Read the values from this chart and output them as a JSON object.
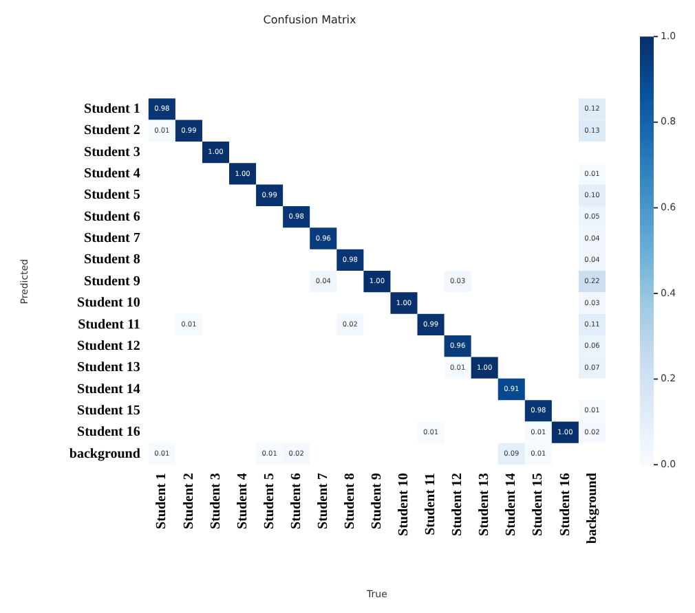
{
  "chart_data": {
    "type": "heatmap",
    "title": "Confusion Matrix",
    "xlabel": "True",
    "ylabel": "Predicted",
    "categories": [
      "Student 1",
      "Student 2",
      "Student 3",
      "Student 4",
      "Student 5",
      "Student 6",
      "Student 7",
      "Student 8",
      "Student 9",
      "Student 10",
      "Student 11",
      "Student 12",
      "Student 13",
      "Student 14",
      "Student 15",
      "Student 16",
      "background"
    ],
    "y_categories": [
      "Student 1",
      "Student 2",
      "Student 3",
      "Student 4",
      "Student 5",
      "Student 6",
      "Student 7",
      "Student 8",
      "Student 9",
      "Student 10",
      "Student 11",
      "Student 12",
      "Student 13",
      "Student 14",
      "Student 15",
      "Student 16",
      "background"
    ],
    "cells": [
      [
        0.98,
        null,
        null,
        null,
        null,
        null,
        null,
        null,
        null,
        null,
        null,
        null,
        null,
        null,
        null,
        null,
        0.12
      ],
      [
        0.01,
        0.99,
        null,
        null,
        null,
        null,
        null,
        null,
        null,
        null,
        null,
        null,
        null,
        null,
        null,
        null,
        0.13
      ],
      [
        null,
        null,
        1.0,
        null,
        null,
        null,
        null,
        null,
        null,
        null,
        null,
        null,
        null,
        null,
        null,
        null,
        null
      ],
      [
        null,
        null,
        null,
        1.0,
        null,
        null,
        null,
        null,
        null,
        null,
        null,
        null,
        null,
        null,
        null,
        null,
        0.01
      ],
      [
        null,
        null,
        null,
        null,
        0.99,
        null,
        null,
        null,
        null,
        null,
        null,
        null,
        null,
        null,
        null,
        null,
        0.1
      ],
      [
        null,
        null,
        null,
        null,
        null,
        0.98,
        null,
        null,
        null,
        null,
        null,
        null,
        null,
        null,
        null,
        null,
        0.05
      ],
      [
        null,
        null,
        null,
        null,
        null,
        null,
        0.96,
        null,
        null,
        null,
        null,
        null,
        null,
        null,
        null,
        null,
        0.04
      ],
      [
        null,
        null,
        null,
        null,
        null,
        null,
        null,
        0.98,
        null,
        null,
        null,
        null,
        null,
        null,
        null,
        null,
        0.04
      ],
      [
        null,
        null,
        null,
        null,
        null,
        null,
        0.04,
        null,
        1.0,
        null,
        null,
        0.03,
        null,
        null,
        null,
        null,
        0.22
      ],
      [
        null,
        null,
        null,
        null,
        null,
        null,
        null,
        null,
        null,
        1.0,
        null,
        null,
        null,
        null,
        null,
        null,
        0.03
      ],
      [
        null,
        0.01,
        null,
        null,
        null,
        null,
        null,
        0.02,
        null,
        null,
        0.99,
        null,
        null,
        null,
        null,
        null,
        0.11
      ],
      [
        null,
        null,
        null,
        null,
        null,
        null,
        null,
        null,
        null,
        null,
        null,
        0.96,
        null,
        null,
        null,
        null,
        0.06
      ],
      [
        null,
        null,
        null,
        null,
        null,
        null,
        null,
        null,
        null,
        null,
        null,
        0.01,
        1.0,
        null,
        null,
        null,
        0.07
      ],
      [
        null,
        null,
        null,
        null,
        null,
        null,
        null,
        null,
        null,
        null,
        null,
        null,
        null,
        0.91,
        null,
        null,
        null
      ],
      [
        null,
        null,
        null,
        null,
        null,
        null,
        null,
        null,
        null,
        null,
        null,
        null,
        null,
        null,
        0.98,
        null,
        0.01
      ],
      [
        null,
        null,
        null,
        null,
        null,
        null,
        null,
        null,
        null,
        null,
        0.01,
        null,
        null,
        null,
        0.01,
        1.0,
        0.02
      ],
      [
        0.01,
        null,
        null,
        null,
        0.01,
        0.02,
        null,
        null,
        null,
        null,
        null,
        null,
        null,
        0.09,
        0.01,
        null,
        null
      ]
    ],
    "cell_labels": [
      [
        "0.98",
        null,
        null,
        null,
        null,
        null,
        null,
        null,
        null,
        null,
        null,
        null,
        null,
        null,
        null,
        null,
        "0.12"
      ],
      [
        "0.01",
        "0.99",
        null,
        null,
        null,
        null,
        null,
        null,
        null,
        null,
        null,
        null,
        null,
        null,
        null,
        null,
        "0.13"
      ],
      [
        null,
        null,
        "1.00",
        null,
        null,
        null,
        null,
        null,
        null,
        null,
        null,
        null,
        null,
        null,
        null,
        null,
        null
      ],
      [
        null,
        null,
        null,
        "1.00",
        null,
        null,
        null,
        null,
        null,
        null,
        null,
        null,
        null,
        null,
        null,
        null,
        "0.01"
      ],
      [
        null,
        null,
        null,
        null,
        "0.99",
        null,
        null,
        null,
        null,
        null,
        null,
        null,
        null,
        null,
        null,
        null,
        "0.10"
      ],
      [
        null,
        null,
        null,
        null,
        null,
        "0.98",
        null,
        null,
        null,
        null,
        null,
        null,
        null,
        null,
        null,
        null,
        "0.05"
      ],
      [
        null,
        null,
        null,
        null,
        null,
        null,
        "0.96",
        null,
        null,
        null,
        null,
        null,
        null,
        null,
        null,
        null,
        "0.04"
      ],
      [
        null,
        null,
        null,
        null,
        null,
        null,
        null,
        "0.98",
        null,
        null,
        null,
        null,
        null,
        null,
        null,
        null,
        "0.04"
      ],
      [
        null,
        null,
        null,
        null,
        null,
        null,
        "0.04",
        null,
        "1.00",
        null,
        null,
        "0.03",
        null,
        null,
        null,
        null,
        "0.22"
      ],
      [
        null,
        null,
        null,
        null,
        null,
        null,
        null,
        null,
        null,
        "1.00",
        null,
        null,
        null,
        null,
        null,
        null,
        "0.03"
      ],
      [
        null,
        "0.01",
        null,
        null,
        null,
        null,
        null,
        "0.02",
        null,
        null,
        "0.99",
        null,
        null,
        null,
        null,
        null,
        "0.11"
      ],
      [
        null,
        null,
        null,
        null,
        null,
        null,
        null,
        null,
        null,
        null,
        null,
        "0.96",
        null,
        null,
        null,
        null,
        "0.06"
      ],
      [
        null,
        null,
        null,
        null,
        null,
        null,
        null,
        null,
        null,
        null,
        null,
        "0.01",
        "1.00",
        null,
        null,
        null,
        "0.07"
      ],
      [
        null,
        null,
        null,
        null,
        null,
        null,
        null,
        null,
        null,
        null,
        null,
        null,
        null,
        "0.91",
        null,
        null,
        null
      ],
      [
        null,
        null,
        null,
        null,
        null,
        null,
        null,
        null,
        null,
        null,
        null,
        null,
        null,
        null,
        "0.98",
        null,
        "0.01"
      ],
      [
        null,
        null,
        null,
        null,
        null,
        null,
        null,
        null,
        null,
        null,
        "0.01",
        null,
        null,
        null,
        "0.01",
        "1.00",
        "0.02"
      ],
      [
        "0.01",
        null,
        null,
        null,
        "0.01",
        "0.02",
        null,
        null,
        null,
        null,
        null,
        null,
        null,
        "0.09",
        "0.01",
        null,
        null
      ]
    ],
    "clim": [
      0,
      1
    ],
    "cticks": [
      {
        "value": 0,
        "label": "0.0"
      },
      0.2,
      0.4,
      0.6,
      0.8,
      {
        "value": 1,
        "label": "1.0"
      }
    ]
  }
}
